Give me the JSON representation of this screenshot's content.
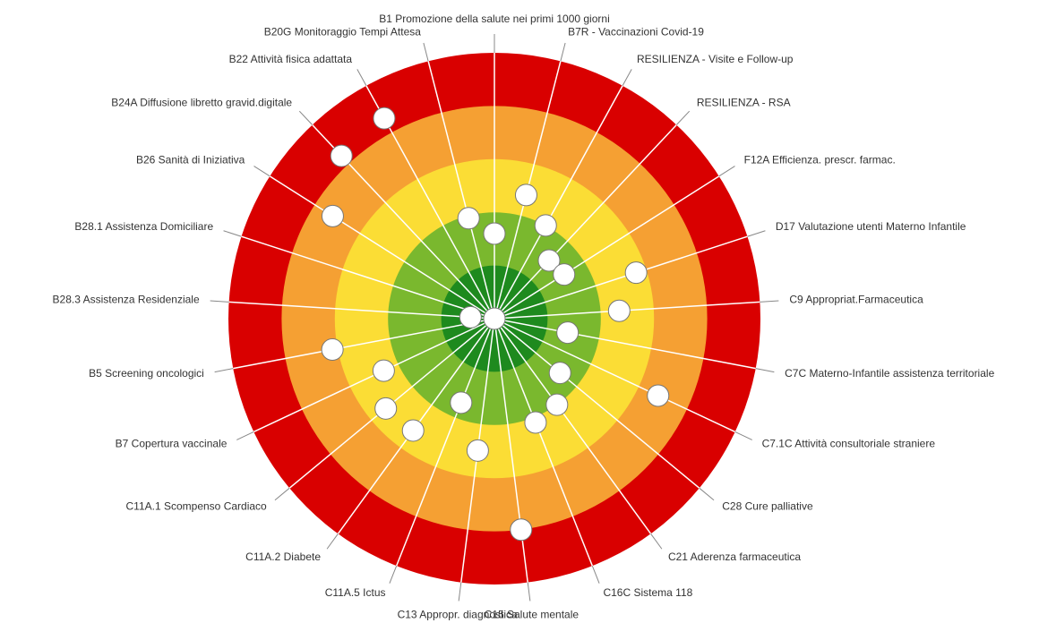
{
  "chart_data": {
    "type": "target",
    "categories": [
      "B1 Promozione della salute nei primi 1000 giorni",
      "B7R - Vaccinazioni Covid-19",
      "RESILIENZA - Visite e Follow-up",
      "RESILIENZA - RSA",
      "F12A Efficienza. prescr. farmac.",
      "D17 Valutazione utenti Materno Infantile",
      "C9 Appropriat.Farmaceutica",
      "C7C Materno-Infantile assistenza territoriale",
      "C7.1C Attività consultoriale straniere",
      "C28 Cure palliative",
      "C21 Aderenza farmaceutica",
      "C16C Sistema 118",
      "C15 Salute mentale",
      "C13 Appropr. diagnostica",
      "C11A.5 Ictus",
      "C11A.2 Diabete",
      "C11A.1 Scompenso Cardiaco",
      "B7 Copertura vaccinale",
      "B5 Screening oncologici",
      "B28.3 Assistenza Residenziale",
      "B28.1 Assistenza Domiciliare",
      "B26 Sanità di Iniziativa",
      "B24A Diffusione libretto gravid.digitale",
      "B22 Attività fisica adattata",
      "B20G Monitoraggio Tempi Attesa"
    ],
    "values": [
      1.6,
      2.4,
      2.0,
      1.5,
      1.55,
      2.8,
      2.35,
      1.4,
      3.4,
      1.6,
      2.0,
      2.1,
      4.0,
      2.5,
      1.7,
      2.6,
      2.65,
      2.3,
      3.1,
      0.45,
      0,
      3.6,
      4.2,
      4.3,
      1.95
    ],
    "rlim": [
      0,
      5
    ],
    "bands": [
      "#1e8a1e",
      "#7ab82e",
      "#fbdd35",
      "#f5a033",
      "#d90000"
    ],
    "marker_color": "#ffffff"
  }
}
